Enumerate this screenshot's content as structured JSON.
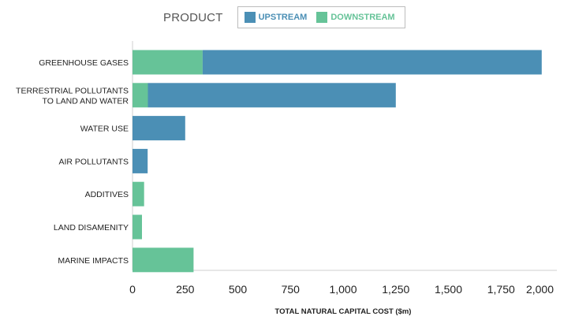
{
  "chart_data": {
    "type": "bar",
    "orientation": "horizontal",
    "stacked": true,
    "legend_title": "PRODUCT",
    "categories": [
      "GREENHOUSE GASES",
      "TERRESTRIAL POLLUTANTS TO LAND AND WATER",
      "WATER USE",
      "AIR POLLUTANTS",
      "ADDITIVES",
      "LAND DISAMENITY",
      "MARINE IMPACTS"
    ],
    "category_lines": [
      [
        "GREENHOUSE GASES"
      ],
      [
        "TERRESTRIAL POLLUTANTS",
        "TO LAND AND WATER"
      ],
      [
        "WATER USE"
      ],
      [
        "AIR POLLUTANTS"
      ],
      [
        "ADDITIVES"
      ],
      [
        "LAND DISAMENITY"
      ],
      [
        "MARINE IMPACTS"
      ]
    ],
    "series": [
      {
        "name": "DOWNSTREAM",
        "color": "#66c398",
        "values": [
          333,
          73,
          0,
          0,
          55,
          45,
          290
        ]
      },
      {
        "name": "UPSTREAM",
        "color": "#4b8fb5",
        "values": [
          1610,
          1177,
          250,
          72,
          0,
          0,
          0
        ]
      }
    ],
    "legend_order": [
      "UPSTREAM",
      "DOWNSTREAM"
    ],
    "xlabel": "TOTAL NATURAL CAPITAL COST ($m)",
    "ylabel": "",
    "xlim": [
      0,
      2000
    ],
    "x_ticks": [
      0,
      250,
      500,
      750,
      1000,
      1250,
      1500,
      1750,
      2000
    ],
    "x_tick_labels": [
      "0",
      "250",
      "500",
      "750",
      "1,000",
      "1,250",
      "1,500",
      "1,750",
      "2,000"
    ],
    "grid": false,
    "legend_position": "top"
  }
}
